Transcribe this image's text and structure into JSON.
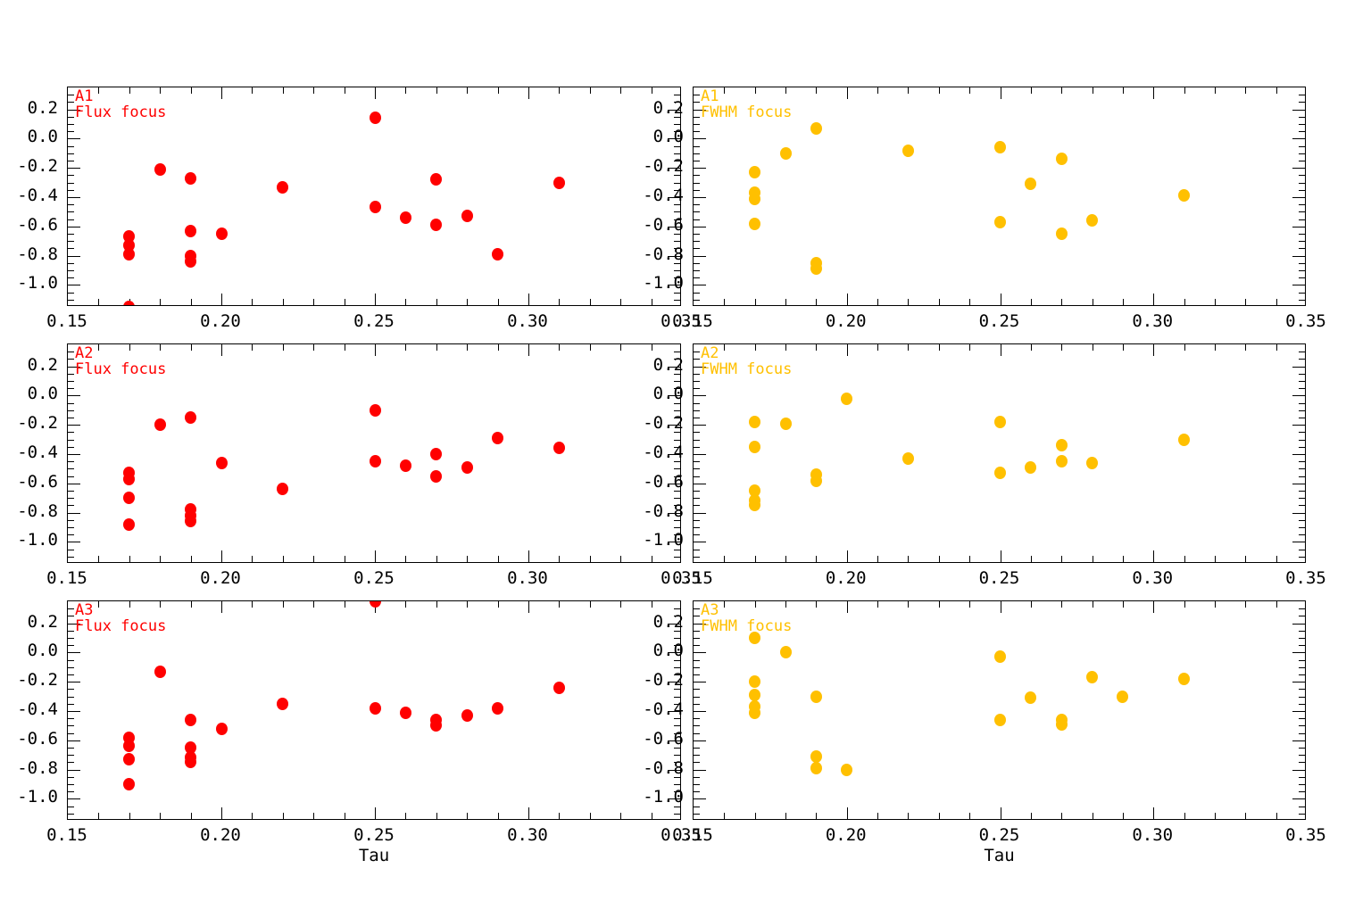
{
  "figure": {
    "background": "#ffffff",
    "axis_color": "#000000",
    "xlabel": "Tau",
    "x_tick_values": [
      0.15,
      0.2,
      0.25,
      0.3,
      0.35
    ],
    "x_tick_labels": [
      "0.15",
      "0.20",
      "0.25",
      "0.30",
      "0.35"
    ],
    "y_tick_values": [
      0.2,
      0.0,
      -0.2,
      -0.4,
      -0.6,
      -0.8,
      -1.0
    ],
    "y_tick_labels": [
      "0.2",
      "0.0",
      "-0.2",
      "-0.4",
      "-0.6",
      "-0.8",
      "-1.0"
    ],
    "x_minor_step": 0.01,
    "y_minor_step": 0.05,
    "xlim": [
      0.15,
      0.35
    ],
    "ylim": [
      -1.15,
      0.35
    ],
    "series_colors": {
      "flux": "#ff0000",
      "fwhm": "#ffc000"
    }
  },
  "chart_data": [
    {
      "type": "scatter",
      "row": 0,
      "col": 0,
      "panel_label": "A1",
      "series_label": "Flux focus",
      "color": "#ff0000",
      "xlabel": "",
      "xlim": [
        0.15,
        0.35
      ],
      "ylim": [
        -1.15,
        0.35
      ],
      "points": [
        [
          0.17,
          -0.67
        ],
        [
          0.17,
          -0.73
        ],
        [
          0.17,
          -0.79
        ],
        [
          0.17,
          -1.15
        ],
        [
          0.18,
          -0.21
        ],
        [
          0.19,
          -0.27
        ],
        [
          0.19,
          -0.63
        ],
        [
          0.19,
          -0.8
        ],
        [
          0.19,
          -0.84
        ],
        [
          0.2,
          -0.65
        ],
        [
          0.22,
          -0.33
        ],
        [
          0.25,
          0.14
        ],
        [
          0.25,
          -0.47
        ],
        [
          0.26,
          -0.54
        ],
        [
          0.27,
          -0.28
        ],
        [
          0.27,
          -0.59
        ],
        [
          0.28,
          -0.53
        ],
        [
          0.29,
          -0.79
        ],
        [
          0.31,
          -0.3
        ]
      ]
    },
    {
      "type": "scatter",
      "row": 0,
      "col": 1,
      "panel_label": "A1",
      "series_label": "FWHM focus",
      "color": "#ffc000",
      "xlabel": "",
      "xlim": [
        0.15,
        0.35
      ],
      "ylim": [
        -1.15,
        0.35
      ],
      "points": [
        [
          0.17,
          -0.23
        ],
        [
          0.17,
          -0.37
        ],
        [
          0.17,
          -0.41
        ],
        [
          0.17,
          -0.58
        ],
        [
          0.18,
          -0.1
        ],
        [
          0.19,
          0.07
        ],
        [
          0.19,
          -0.85
        ],
        [
          0.19,
          -0.89
        ],
        [
          0.22,
          -0.08
        ],
        [
          0.25,
          -0.06
        ],
        [
          0.25,
          -0.57
        ],
        [
          0.26,
          -0.31
        ],
        [
          0.27,
          -0.14
        ],
        [
          0.27,
          -0.65
        ],
        [
          0.28,
          -0.56
        ],
        [
          0.31,
          -0.39
        ]
      ]
    },
    {
      "type": "scatter",
      "row": 1,
      "col": 0,
      "panel_label": "A2",
      "series_label": "Flux focus",
      "color": "#ff0000",
      "xlabel": "",
      "xlim": [
        0.15,
        0.35
      ],
      "ylim": [
        -1.15,
        0.35
      ],
      "points": [
        [
          0.17,
          -0.53
        ],
        [
          0.17,
          -0.57
        ],
        [
          0.17,
          -0.7
        ],
        [
          0.17,
          -0.88
        ],
        [
          0.18,
          -0.2
        ],
        [
          0.19,
          -0.15
        ],
        [
          0.19,
          -0.78
        ],
        [
          0.19,
          -0.82
        ],
        [
          0.19,
          -0.86
        ],
        [
          0.2,
          -0.46
        ],
        [
          0.22,
          -0.64
        ],
        [
          0.25,
          -0.1
        ],
        [
          0.25,
          -0.45
        ],
        [
          0.26,
          -0.48
        ],
        [
          0.27,
          -0.4
        ],
        [
          0.27,
          -0.55
        ],
        [
          0.28,
          -0.49
        ],
        [
          0.29,
          -0.29
        ],
        [
          0.31,
          -0.36
        ]
      ]
    },
    {
      "type": "scatter",
      "row": 1,
      "col": 1,
      "panel_label": "A2",
      "series_label": "FWHM focus",
      "color": "#ffc000",
      "xlabel": "",
      "xlim": [
        0.15,
        0.35
      ],
      "ylim": [
        -1.15,
        0.35
      ],
      "points": [
        [
          0.17,
          -0.18
        ],
        [
          0.17,
          -0.35
        ],
        [
          0.17,
          -0.65
        ],
        [
          0.17,
          -0.72
        ],
        [
          0.17,
          -0.75
        ],
        [
          0.18,
          -0.19
        ],
        [
          0.19,
          -0.54
        ],
        [
          0.19,
          -0.58
        ],
        [
          0.2,
          -0.02
        ],
        [
          0.22,
          -0.43
        ],
        [
          0.25,
          -0.18
        ],
        [
          0.25,
          -0.53
        ],
        [
          0.26,
          -0.49
        ],
        [
          0.27,
          -0.34
        ],
        [
          0.27,
          -0.45
        ],
        [
          0.28,
          -0.46
        ],
        [
          0.31,
          -0.3
        ]
      ]
    },
    {
      "type": "scatter",
      "row": 2,
      "col": 0,
      "panel_label": "A3",
      "series_label": "Flux focus",
      "color": "#ff0000",
      "xlabel": "Tau",
      "xlim": [
        0.15,
        0.35
      ],
      "ylim": [
        -1.15,
        0.35
      ],
      "points": [
        [
          0.17,
          -0.58
        ],
        [
          0.17,
          -0.64
        ],
        [
          0.17,
          -0.73
        ],
        [
          0.17,
          -0.9
        ],
        [
          0.18,
          -0.13
        ],
        [
          0.19,
          -0.46
        ],
        [
          0.19,
          -0.65
        ],
        [
          0.19,
          -0.72
        ],
        [
          0.19,
          -0.75
        ],
        [
          0.2,
          -0.52
        ],
        [
          0.22,
          -0.35
        ],
        [
          0.25,
          0.35
        ],
        [
          0.25,
          -0.38
        ],
        [
          0.26,
          -0.41
        ],
        [
          0.27,
          -0.46
        ],
        [
          0.27,
          -0.5
        ],
        [
          0.28,
          -0.43
        ],
        [
          0.29,
          -0.38
        ],
        [
          0.31,
          -0.24
        ]
      ]
    },
    {
      "type": "scatter",
      "row": 2,
      "col": 1,
      "panel_label": "A3",
      "series_label": "FWHM focus",
      "color": "#ffc000",
      "xlabel": "Tau",
      "xlim": [
        0.15,
        0.35
      ],
      "ylim": [
        -1.15,
        0.35
      ],
      "points": [
        [
          0.17,
          0.1
        ],
        [
          0.17,
          -0.2
        ],
        [
          0.17,
          -0.29
        ],
        [
          0.17,
          -0.37
        ],
        [
          0.17,
          -0.41
        ],
        [
          0.18,
          0.0
        ],
        [
          0.19,
          -0.3
        ],
        [
          0.19,
          -0.71
        ],
        [
          0.19,
          -0.79
        ],
        [
          0.2,
          -0.8
        ],
        [
          0.25,
          -0.03
        ],
        [
          0.25,
          -0.46
        ],
        [
          0.26,
          -0.31
        ],
        [
          0.27,
          -0.46
        ],
        [
          0.27,
          -0.49
        ],
        [
          0.28,
          -0.17
        ],
        [
          0.29,
          -0.3
        ],
        [
          0.31,
          -0.18
        ]
      ]
    }
  ]
}
